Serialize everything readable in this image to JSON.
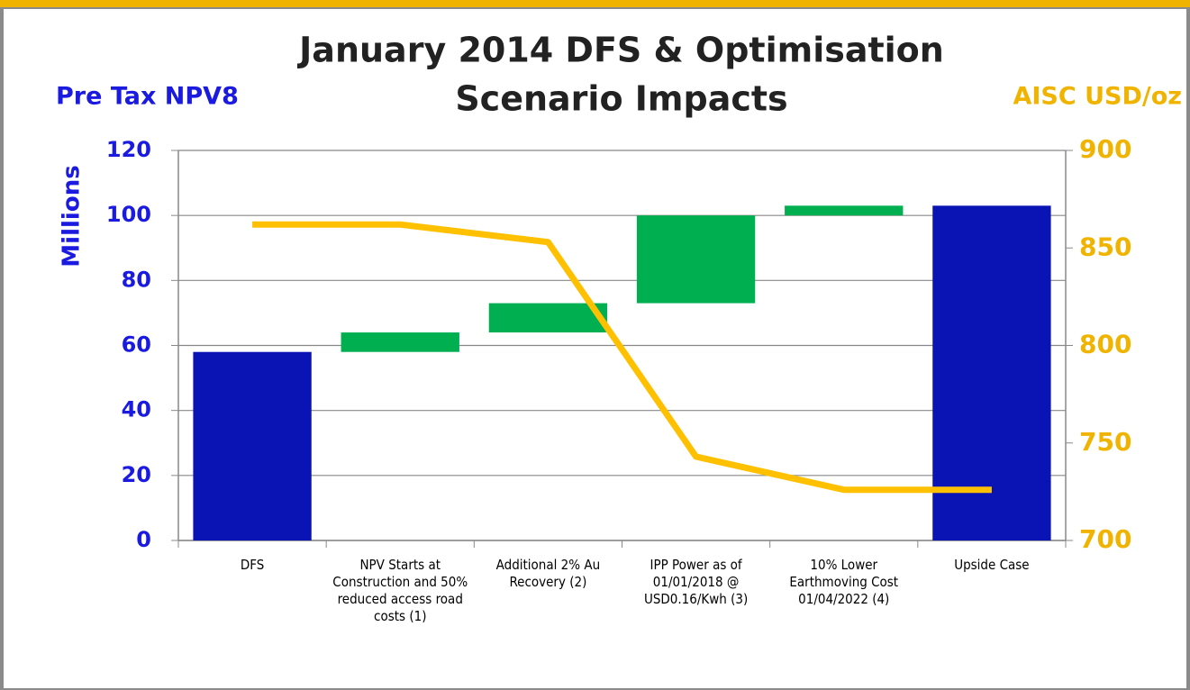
{
  "chart_data": {
    "type": "waterfall",
    "title": [
      "January 2014 DFS & Optimisation",
      "Scenario Impacts"
    ],
    "y_label": "Millions",
    "y_title": "Pre Tax NPV8",
    "y2_title": "AISC USD/oz",
    "categories": [
      "DFS",
      "NPV Starts at Construction and 50% reduced access road costs (1)",
      "Additional 2% Au Recovery (2)",
      "IPP Power as of 01/01/2018 @ USD0.16/Kwh (3)",
      "10% Lower Earthmoving Cost 01/04/2022 (4)",
      "Upside Case"
    ],
    "series": [
      {
        "type": "waterfall",
        "measure": [
          "absolute",
          "relative",
          "relative",
          "relative",
          "relative",
          "absolute"
        ],
        "total_color": "#0a14b4",
        "increase_color": "#00b050",
        "values": [
          58,
          6,
          9,
          27,
          3,
          103
        ]
      },
      {
        "type": "line",
        "axis": "y2",
        "color": "#ffc000",
        "values": [
          862,
          862,
          853,
          743,
          726,
          726
        ]
      }
    ],
    "ylim": [
      0,
      120
    ],
    "yticks": [
      0,
      20,
      40,
      60,
      80,
      100,
      120
    ],
    "y2lim": [
      700,
      900
    ],
    "y2ticks": [
      700,
      750,
      800,
      850,
      900
    ],
    "grid": true
  }
}
